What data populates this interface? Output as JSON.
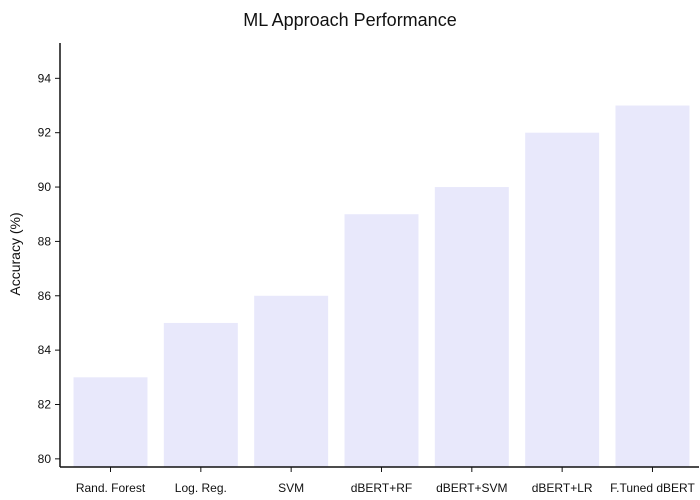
{
  "chart_data": {
    "type": "bar",
    "title": "ML Approach Performance",
    "xlabel": "",
    "ylabel": "Accuracy (%)",
    "categories": [
      "Rand. Forest",
      "Log. Reg.",
      "SVM",
      "dBERT+RF",
      "dBERT+SVM",
      "dBERT+LR",
      "F.Tuned dBERT"
    ],
    "values": [
      83,
      85,
      86,
      89,
      90,
      92,
      93
    ],
    "ylim": [
      79.7,
      95.3
    ],
    "yticks": [
      80,
      82,
      84,
      86,
      88,
      90,
      92,
      94
    ],
    "bar_color": "#e8e8fb",
    "grid": false,
    "legend": "none"
  }
}
